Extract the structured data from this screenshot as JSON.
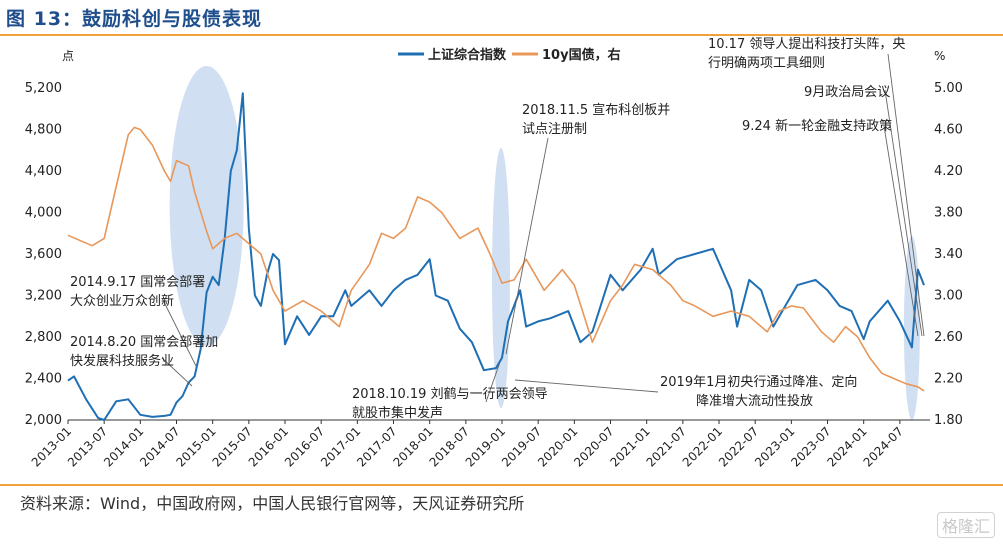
{
  "figure": {
    "title": "图 13：鼓励科创与股债表现",
    "source": "资料来源：Wind，中国政府网，中国人民银行官网等，天风证券研究所",
    "watermark": "格隆汇"
  },
  "colors": {
    "stock": "#1f6fb5",
    "bond": "#e8975a",
    "ellipse": "#a9c6e8",
    "accent": "#f0a13a",
    "title": "#1f4e8c"
  },
  "chart_data": {
    "type": "line",
    "xlabel": "",
    "left_unit": "点",
    "right_unit": "%",
    "x_ticks": [
      "2013-01",
      "2013-07",
      "2014-01",
      "2014-07",
      "2015-01",
      "2015-07",
      "2016-01",
      "2016-07",
      "2017-01",
      "2017-07",
      "2018-01",
      "2018-07",
      "2019-01",
      "2019-07",
      "2020-01",
      "2020-07",
      "2021-01",
      "2021-07",
      "2022-01",
      "2022-07",
      "2023-01",
      "2023-07",
      "2024-01",
      "2024-07"
    ],
    "left_axis": {
      "min": 2000,
      "max": 5200,
      "ticks": [
        2000,
        2400,
        2800,
        3200,
        3600,
        4000,
        4400,
        4800,
        5200
      ],
      "tick_labels": [
        "2,000",
        "2,400",
        "2,800",
        "3,200",
        "3,600",
        "4,000",
        "4,400",
        "4,800",
        "5,200"
      ]
    },
    "right_axis": {
      "min": 1.8,
      "max": 5.0,
      "ticks": [
        1.8,
        2.2,
        2.6,
        3.0,
        3.4,
        3.8,
        4.2,
        4.6,
        5.0
      ],
      "tick_labels": [
        "1.80",
        "2.20",
        "2.60",
        "3.00",
        "3.40",
        "3.80",
        "4.20",
        "4.60",
        "5.00"
      ]
    },
    "legend": {
      "position": "top-center"
    },
    "series": [
      {
        "name": "上证综合指数",
        "axis": "left",
        "points": [
          [
            "2013-01",
            2380
          ],
          [
            "2013-02",
            2420
          ],
          [
            "2013-04",
            2200
          ],
          [
            "2013-06",
            2020
          ],
          [
            "2013-07",
            2000
          ],
          [
            "2013-09",
            2180
          ],
          [
            "2013-11",
            2200
          ],
          [
            "2014-01",
            2050
          ],
          [
            "2014-03",
            2030
          ],
          [
            "2014-05",
            2040
          ],
          [
            "2014-06",
            2050
          ],
          [
            "2014-07",
            2170
          ],
          [
            "2014-08",
            2230
          ],
          [
            "2014-09",
            2360
          ],
          [
            "2014-10",
            2420
          ],
          [
            "2014-11",
            2680
          ],
          [
            "2014-12",
            3230
          ],
          [
            "2015-01",
            3380
          ],
          [
            "2015-02",
            3300
          ],
          [
            "2015-03",
            3750
          ],
          [
            "2015-04",
            4400
          ],
          [
            "2015-05",
            4600
          ],
          [
            "2015-06",
            5150
          ],
          [
            "2015-07",
            3850
          ],
          [
            "2015-08",
            3200
          ],
          [
            "2015-09",
            3100
          ],
          [
            "2015-10",
            3400
          ],
          [
            "2015-11",
            3600
          ],
          [
            "2015-12",
            3540
          ],
          [
            "2016-01",
            2730
          ],
          [
            "2016-03",
            3000
          ],
          [
            "2016-05",
            2820
          ],
          [
            "2016-07",
            3000
          ],
          [
            "2016-09",
            3000
          ],
          [
            "2016-11",
            3250
          ],
          [
            "2016-12",
            3100
          ],
          [
            "2017-03",
            3250
          ],
          [
            "2017-05",
            3100
          ],
          [
            "2017-07",
            3250
          ],
          [
            "2017-09",
            3350
          ],
          [
            "2017-11",
            3400
          ],
          [
            "2018-01",
            3550
          ],
          [
            "2018-02",
            3200
          ],
          [
            "2018-04",
            3150
          ],
          [
            "2018-06",
            2880
          ],
          [
            "2018-08",
            2750
          ],
          [
            "2018-10",
            2480
          ],
          [
            "2018-12",
            2500
          ],
          [
            "2019-01",
            2600
          ],
          [
            "2019-02",
            2950
          ],
          [
            "2019-04",
            3250
          ],
          [
            "2019-05",
            2900
          ],
          [
            "2019-07",
            2950
          ],
          [
            "2019-09",
            2980
          ],
          [
            "2019-12",
            3050
          ],
          [
            "2020-02",
            2750
          ],
          [
            "2020-04",
            2850
          ],
          [
            "2020-07",
            3400
          ],
          [
            "2020-09",
            3250
          ],
          [
            "2020-12",
            3450
          ],
          [
            "2021-02",
            3650
          ],
          [
            "2021-03",
            3400
          ],
          [
            "2021-06",
            3550
          ],
          [
            "2021-09",
            3600
          ],
          [
            "2021-12",
            3650
          ],
          [
            "2022-03",
            3250
          ],
          [
            "2022-04",
            2900
          ],
          [
            "2022-06",
            3350
          ],
          [
            "2022-08",
            3250
          ],
          [
            "2022-10",
            2900
          ],
          [
            "2022-12",
            3100
          ],
          [
            "2023-02",
            3300
          ],
          [
            "2023-05",
            3350
          ],
          [
            "2023-07",
            3250
          ],
          [
            "2023-09",
            3100
          ],
          [
            "2023-11",
            3050
          ],
          [
            "2024-01",
            2780
          ],
          [
            "2024-02",
            2950
          ],
          [
            "2024-05",
            3150
          ],
          [
            "2024-07",
            2950
          ],
          [
            "2024-09",
            2700
          ],
          [
            "2024-10",
            3450
          ],
          [
            "2024-11",
            3300
          ]
        ]
      },
      {
        "name": "10y国债，右",
        "axis": "right",
        "points": [
          [
            "2013-01",
            3.58
          ],
          [
            "2013-05",
            3.48
          ],
          [
            "2013-07",
            3.55
          ],
          [
            "2013-09",
            4.05
          ],
          [
            "2013-11",
            4.55
          ],
          [
            "2013-12",
            4.62
          ],
          [
            "2014-01",
            4.6
          ],
          [
            "2014-03",
            4.45
          ],
          [
            "2014-05",
            4.2
          ],
          [
            "2014-06",
            4.1
          ],
          [
            "2014-07",
            4.3
          ],
          [
            "2014-09",
            4.25
          ],
          [
            "2014-10",
            4.0
          ],
          [
            "2014-12",
            3.62
          ],
          [
            "2015-01",
            3.45
          ],
          [
            "2015-03",
            3.55
          ],
          [
            "2015-05",
            3.6
          ],
          [
            "2015-07",
            3.5
          ],
          [
            "2015-09",
            3.4
          ],
          [
            "2015-11",
            3.05
          ],
          [
            "2016-01",
            2.85
          ],
          [
            "2016-04",
            2.95
          ],
          [
            "2016-07",
            2.85
          ],
          [
            "2016-10",
            2.7
          ],
          [
            "2016-12",
            3.05
          ],
          [
            "2017-03",
            3.3
          ],
          [
            "2017-05",
            3.6
          ],
          [
            "2017-07",
            3.55
          ],
          [
            "2017-09",
            3.65
          ],
          [
            "2017-11",
            3.95
          ],
          [
            "2018-01",
            3.9
          ],
          [
            "2018-03",
            3.8
          ],
          [
            "2018-06",
            3.55
          ],
          [
            "2018-09",
            3.65
          ],
          [
            "2018-11",
            3.4
          ],
          [
            "2019-01",
            3.12
          ],
          [
            "2019-03",
            3.15
          ],
          [
            "2019-05",
            3.35
          ],
          [
            "2019-08",
            3.05
          ],
          [
            "2019-11",
            3.25
          ],
          [
            "2020-01",
            3.1
          ],
          [
            "2020-04",
            2.55
          ],
          [
            "2020-07",
            2.95
          ],
          [
            "2020-09",
            3.1
          ],
          [
            "2020-11",
            3.3
          ],
          [
            "2021-02",
            3.25
          ],
          [
            "2021-05",
            3.1
          ],
          [
            "2021-07",
            2.95
          ],
          [
            "2021-09",
            2.9
          ],
          [
            "2021-12",
            2.8
          ],
          [
            "2022-03",
            2.85
          ],
          [
            "2022-06",
            2.8
          ],
          [
            "2022-09",
            2.65
          ],
          [
            "2022-11",
            2.85
          ],
          [
            "2023-01",
            2.9
          ],
          [
            "2023-03",
            2.88
          ],
          [
            "2023-06",
            2.65
          ],
          [
            "2023-08",
            2.55
          ],
          [
            "2023-10",
            2.7
          ],
          [
            "2023-12",
            2.6
          ],
          [
            "2024-02",
            2.4
          ],
          [
            "2024-04",
            2.25
          ],
          [
            "2024-06",
            2.2
          ],
          [
            "2024-08",
            2.15
          ],
          [
            "2024-10",
            2.12
          ],
          [
            "2024-11",
            2.08
          ]
        ]
      }
    ],
    "annotations": [
      {
        "text": [
          "2014.9.17 国常会部署",
          "大众创业万众创新"
        ],
        "at": "2014-09"
      },
      {
        "text": [
          "2014.8.20 国常会部署加",
          "快发展科技服务业"
        ],
        "at": "2014-08"
      },
      {
        "text": [
          "2018.11.5 宣布科创板并",
          "试点注册制"
        ],
        "at": "2018-11"
      },
      {
        "text": [
          "2018.10.19 刘鹤与一行两会领导",
          "就股市集中发声"
        ],
        "at": "2018-10"
      },
      {
        "text": [
          "2019年1月初央行通过降准、定向",
          "降准增大流动性投放"
        ],
        "at": "2019-01"
      },
      {
        "text": [
          "10.17 领导人提出科技打头阵，央",
          "行明确两项工具细则"
        ],
        "at": "2024-10"
      },
      {
        "text": [
          "9月政治局会议"
        ],
        "at": "2024-09"
      },
      {
        "text": [
          "9.24 新一轮金融支持政策"
        ],
        "at": "2024-09"
      }
    ]
  }
}
